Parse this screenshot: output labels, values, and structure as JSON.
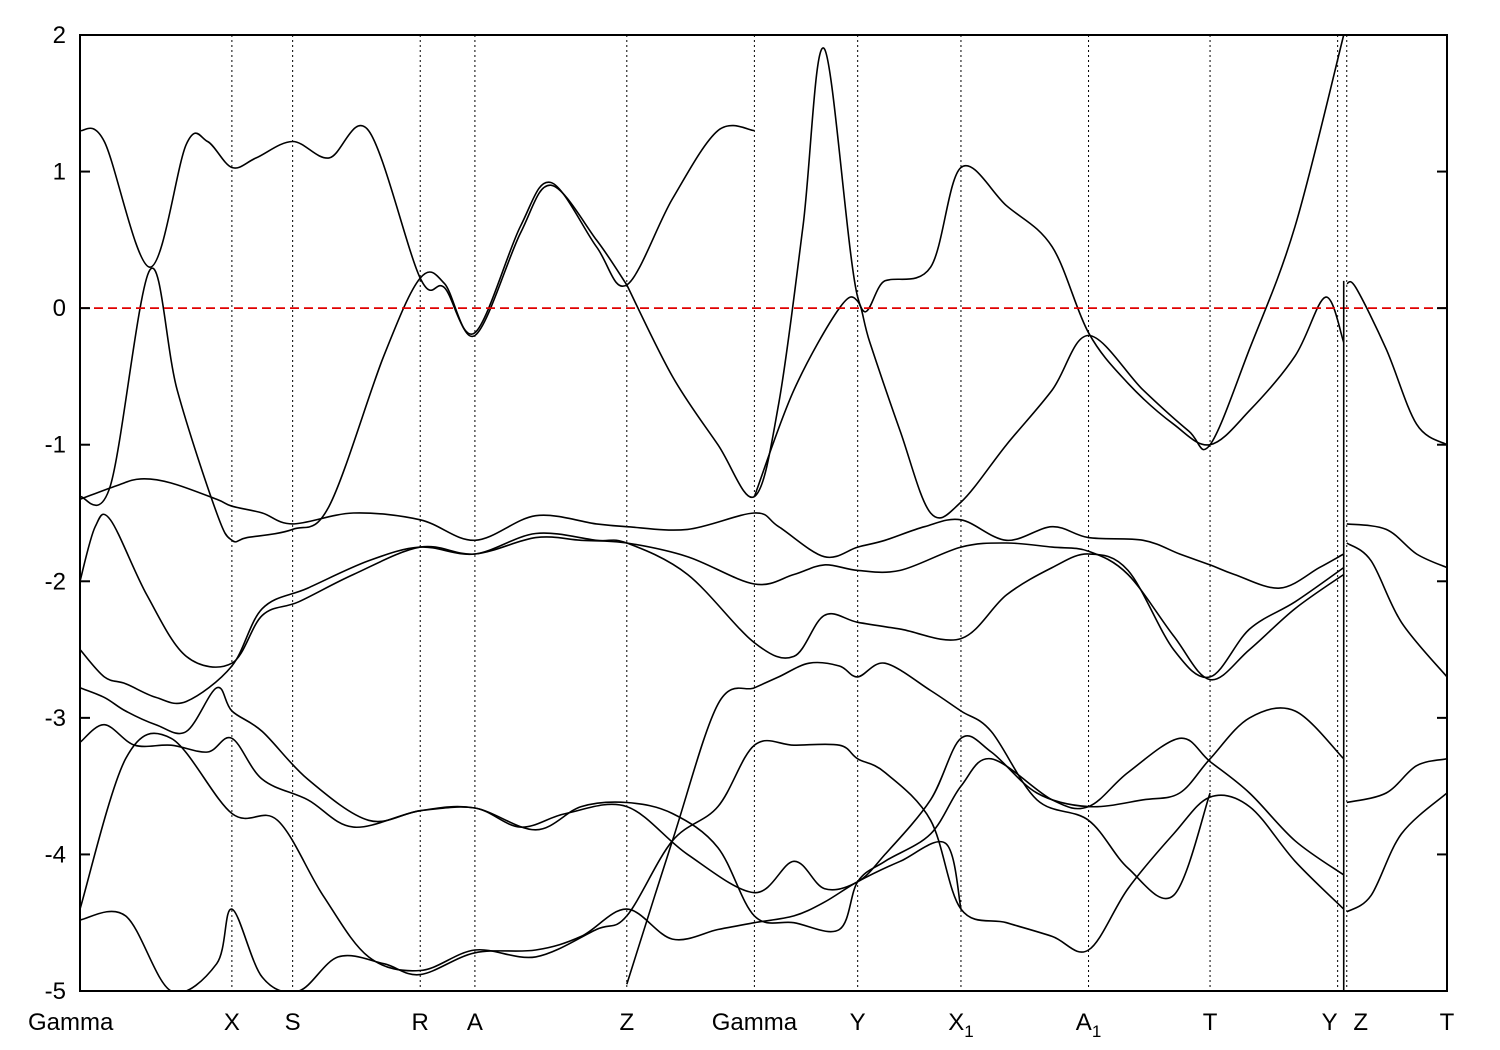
{
  "chart_data": {
    "type": "line",
    "title": "",
    "xlabel": "",
    "ylabel": "",
    "ylim": [
      -5,
      2
    ],
    "yticks": [
      -5,
      -4,
      -3,
      -2,
      -1,
      0,
      1,
      2
    ],
    "grid": false,
    "fermi_level": {
      "y": 0,
      "color": "#e00000",
      "style": "dashed"
    },
    "kpoints": [
      {
        "label": "Gamma",
        "x": 0.0
      },
      {
        "label": "X",
        "x": 0.5
      },
      {
        "label": "S",
        "x": 0.7
      },
      {
        "label": "R",
        "x": 1.12
      },
      {
        "label": "A",
        "x": 1.3
      },
      {
        "label": "Z",
        "x": 1.8
      },
      {
        "label": "Gamma",
        "x": 2.22
      },
      {
        "label": "Y",
        "x": 2.56
      },
      {
        "label": "X",
        "sub": "1",
        "x": 2.9
      },
      {
        "label": "A",
        "sub": "1",
        "x": 3.32
      },
      {
        "label": "T",
        "x": 3.72
      },
      {
        "label": "Y",
        "x": 4.14
      },
      {
        "label": "Z",
        "x": 4.17
      },
      {
        "label": "T",
        "x": 4.5
      }
    ],
    "xlim": [
      0,
      4.5
    ],
    "break_x": 4.16,
    "series": [
      {
        "x": [
          0.0,
          0.08,
          0.23,
          0.35,
          0.42,
          0.5,
          0.58,
          0.7,
          0.82,
          0.95,
          1.12,
          1.2,
          1.3,
          1.45,
          1.55,
          1.7,
          1.8,
          1.95,
          2.1,
          2.22
        ],
        "y": [
          1.3,
          1.22,
          0.3,
          1.2,
          1.22,
          1.03,
          1.1,
          1.22,
          1.1,
          1.3,
          0.22,
          0.15,
          -0.18,
          0.6,
          0.92,
          0.45,
          0.17,
          0.8,
          1.3,
          1.3
        ]
      },
      {
        "x": [
          0.0,
          0.1,
          0.23,
          0.32,
          0.45,
          0.5,
          0.55,
          0.7,
          0.82,
          1.0,
          1.12,
          1.2,
          1.3,
          1.45,
          1.55,
          1.7,
          1.8
        ],
        "y": [
          -1.38,
          -1.3,
          0.28,
          -0.6,
          -1.5,
          -1.7,
          -1.68,
          -1.62,
          -1.45,
          -0.35,
          0.22,
          0.18,
          -0.2,
          0.55,
          0.9,
          0.5,
          0.17
        ]
      },
      {
        "x": [
          0.0,
          0.12,
          0.2,
          0.3,
          0.45,
          0.5,
          0.6,
          0.7,
          0.9,
          1.12,
          1.3,
          1.5,
          1.7,
          1.8,
          2.0,
          2.22,
          2.3,
          2.45,
          2.56,
          2.65,
          2.78,
          2.9,
          3.05,
          3.2,
          3.32,
          3.5,
          3.62,
          3.72,
          3.8,
          3.95,
          4.08,
          4.16
        ],
        "y": [
          -1.4,
          -1.3,
          -1.25,
          -1.28,
          -1.4,
          -1.45,
          -1.5,
          -1.58,
          -1.5,
          -1.55,
          -1.7,
          -1.52,
          -1.58,
          -1.6,
          -1.62,
          -1.5,
          -1.6,
          -1.82,
          -1.75,
          -1.7,
          -1.6,
          -1.55,
          -1.7,
          -1.6,
          -1.68,
          -1.7,
          -1.8,
          -1.88,
          -1.95,
          -2.05,
          -1.9,
          -1.8
        ]
      },
      {
        "x": [
          1.8,
          1.95,
          2.1,
          2.22,
          2.3,
          2.38,
          2.45,
          2.56,
          2.65,
          2.8,
          2.9,
          3.05,
          3.2,
          3.32,
          3.45,
          3.6,
          3.72,
          3.85,
          4.0,
          4.1,
          4.16
        ],
        "y": [
          0.17,
          -0.5,
          -1.0,
          -1.38,
          -0.7,
          0.6,
          1.9,
          0.08,
          0.2,
          0.3,
          1.03,
          0.75,
          0.45,
          -0.18,
          -0.55,
          -0.85,
          -1.0,
          -0.75,
          -0.35,
          0.08,
          -0.25
        ]
      },
      {
        "x": [
          2.22,
          2.35,
          2.5,
          2.56,
          2.6,
          2.7,
          2.8,
          2.9,
          3.05,
          3.2,
          3.32,
          3.5,
          3.65,
          3.72,
          3.85,
          4.0,
          4.16
        ],
        "y": [
          -1.38,
          -0.6,
          0.0,
          0.05,
          -0.25,
          -0.9,
          -1.5,
          -1.42,
          -1.0,
          -0.6,
          -0.2,
          -0.6,
          -0.9,
          -1.0,
          -0.3,
          0.6,
          2.0
        ]
      },
      {
        "x": [
          4.17,
          4.2,
          4.3,
          4.4,
          4.5
        ],
        "y": [
          0.18,
          0.15,
          -0.3,
          -0.85,
          -1.0
        ]
      },
      {
        "x": [
          4.17,
          4.3,
          4.4,
          4.5
        ],
        "y": [
          -1.58,
          -1.62,
          -1.8,
          -1.9
        ]
      },
      {
        "x": [
          4.17,
          4.25,
          4.35,
          4.5
        ],
        "y": [
          -1.72,
          -1.85,
          -2.3,
          -2.7
        ]
      },
      {
        "x": [
          4.17,
          4.3,
          4.4,
          4.5
        ],
        "y": [
          -3.62,
          -3.55,
          -3.35,
          -3.3
        ]
      },
      {
        "x": [
          4.17,
          4.25,
          4.35,
          4.5
        ],
        "y": [
          -4.42,
          -4.3,
          -3.85,
          -3.55
        ]
      },
      {
        "x": [
          0.0,
          0.05,
          0.1,
          0.22,
          0.35,
          0.5,
          0.6,
          0.72,
          0.9,
          1.12,
          1.3,
          1.5,
          1.65,
          1.8,
          2.0,
          2.22,
          2.35,
          2.45,
          2.56,
          2.7,
          2.9,
          3.05,
          3.2,
          3.32,
          3.45,
          3.6,
          3.72,
          3.85,
          4.0,
          4.16
        ],
        "y": [
          -2.0,
          -1.6,
          -1.55,
          -2.1,
          -2.55,
          -2.6,
          -2.25,
          -2.15,
          -1.95,
          -1.75,
          -1.8,
          -1.68,
          -1.7,
          -1.72,
          -1.82,
          -2.02,
          -1.95,
          -1.88,
          -1.92,
          -1.92,
          -1.75,
          -1.72,
          -1.75,
          -1.78,
          -1.95,
          -2.4,
          -2.72,
          -2.5,
          -2.2,
          -1.95
        ]
      },
      {
        "x": [
          0.0,
          0.08,
          0.15,
          0.25,
          0.35,
          0.5,
          0.6,
          0.75,
          0.95,
          1.12,
          1.3,
          1.5,
          1.7,
          1.8,
          2.0,
          2.22,
          2.35,
          2.45,
          2.56,
          2.7,
          2.9,
          3.05,
          3.2,
          3.32,
          3.45,
          3.6,
          3.72,
          3.85,
          4.0,
          4.16
        ],
        "y": [
          -2.5,
          -2.7,
          -2.75,
          -2.85,
          -2.88,
          -2.62,
          -2.2,
          -2.05,
          -1.85,
          -1.75,
          -1.8,
          -1.65,
          -1.7,
          -1.72,
          -1.95,
          -2.45,
          -2.55,
          -2.25,
          -2.3,
          -2.35,
          -2.42,
          -2.1,
          -1.9,
          -1.8,
          -1.92,
          -2.5,
          -2.7,
          -2.35,
          -2.15,
          -1.9
        ]
      },
      {
        "x": [
          0.0,
          0.08,
          0.15,
          0.25,
          0.35,
          0.45,
          0.5,
          0.6,
          0.75,
          0.95,
          1.12,
          1.3,
          1.45,
          1.6,
          1.8,
          2.0,
          2.22,
          2.35,
          2.45,
          2.56,
          2.65,
          2.8,
          2.9,
          3.0,
          3.15,
          3.32,
          3.5,
          3.62,
          3.72,
          3.85,
          4.0,
          4.16
        ],
        "y": [
          -2.78,
          -2.85,
          -2.95,
          -3.05,
          -3.1,
          -2.78,
          -2.95,
          -3.1,
          -3.45,
          -3.75,
          -3.68,
          -3.66,
          -3.8,
          -3.7,
          -3.65,
          -4.0,
          -4.28,
          -4.05,
          -4.25,
          -4.2,
          -4.0,
          -3.6,
          -3.15,
          -3.25,
          -3.55,
          -3.65,
          -3.6,
          -3.55,
          -3.3,
          -3.0,
          -2.95,
          -3.3
        ]
      },
      {
        "x": [
          0.0,
          0.08,
          0.18,
          0.3,
          0.42,
          0.5,
          0.6,
          0.75,
          0.9,
          1.12,
          1.3,
          1.5,
          1.65,
          1.8,
          1.95,
          2.1,
          2.22,
          2.35,
          2.5,
          2.56,
          2.65,
          2.8,
          2.9,
          3.0,
          3.2,
          3.32,
          3.45,
          3.62,
          3.72,
          3.85,
          4.0,
          4.16
        ],
        "y": [
          -3.18,
          -3.05,
          -3.2,
          -3.2,
          -3.25,
          -3.15,
          -3.45,
          -3.6,
          -3.8,
          -3.68,
          -3.66,
          -3.82,
          -3.65,
          -3.62,
          -3.7,
          -3.95,
          -4.45,
          -4.5,
          -4.55,
          -4.2,
          -4.05,
          -3.85,
          -3.5,
          -3.3,
          -3.6,
          -3.65,
          -3.4,
          -3.15,
          -3.32,
          -3.55,
          -3.9,
          -4.15
        ]
      },
      {
        "x": [
          0.0,
          0.15,
          0.3,
          0.5,
          0.65,
          0.8,
          0.95,
          1.12,
          1.3,
          1.5,
          1.7,
          1.8,
          1.95,
          2.1,
          2.22,
          2.35,
          2.5,
          2.56,
          2.65,
          2.8,
          2.9,
          3.05,
          3.2,
          3.32,
          3.45,
          3.6,
          3.72,
          3.85,
          4.0,
          4.16
        ],
        "y": [
          -4.4,
          -3.3,
          -3.15,
          -3.7,
          -3.75,
          -4.3,
          -4.75,
          -4.85,
          -4.7,
          -4.75,
          -4.55,
          -4.45,
          -3.9,
          -3.65,
          -3.2,
          -3.2,
          -3.2,
          -3.3,
          -3.4,
          -3.75,
          -4.4,
          -4.5,
          -4.6,
          -4.7,
          -4.25,
          -3.85,
          -3.58,
          -3.65,
          -4.05,
          -4.4
        ]
      },
      {
        "x": [
          0.0,
          0.15,
          0.3,
          0.45,
          0.5,
          0.6,
          0.72,
          0.85,
          1.0,
          1.12,
          1.3,
          1.5,
          1.65,
          1.8,
          1.95,
          2.1,
          2.22,
          2.35,
          2.45,
          2.56,
          2.7,
          2.85,
          2.9
        ],
        "y": [
          -4.48,
          -4.45,
          -5.0,
          -4.8,
          -4.4,
          -4.9,
          -5.0,
          -4.75,
          -4.8,
          -4.88,
          -4.72,
          -4.7,
          -4.6,
          -4.4,
          -4.62,
          -4.55,
          -4.5,
          -4.45,
          -4.35,
          -4.2,
          -4.05,
          -3.92,
          -4.4
        ]
      },
      {
        "x": [
          1.8,
          1.95,
          2.1,
          2.22,
          2.3,
          2.4,
          2.5,
          2.56,
          2.65,
          2.8,
          2.9,
          3.0,
          3.15,
          3.32,
          3.45,
          3.6,
          3.72
        ],
        "y": [
          -4.95,
          -3.9,
          -2.9,
          -2.78,
          -2.7,
          -2.6,
          -2.62,
          -2.7,
          -2.6,
          -2.8,
          -2.95,
          -3.1,
          -3.6,
          -3.75,
          -4.1,
          -4.3,
          -3.55
        ]
      }
    ]
  }
}
